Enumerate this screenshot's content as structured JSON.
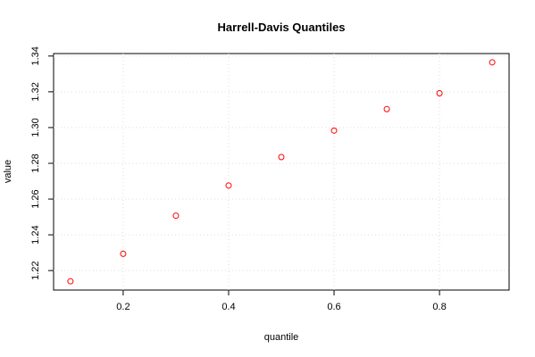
{
  "chart_data": {
    "type": "scatter",
    "title": "Harrell-Davis Quantiles",
    "x_label": "quantile",
    "y_label": "value",
    "x": [
      0.1,
      0.2,
      0.3,
      0.4,
      0.5,
      0.6,
      0.7,
      0.8,
      0.9
    ],
    "values": [
      1.214,
      1.2294,
      1.2507,
      1.2676,
      1.2835,
      1.2983,
      1.3103,
      1.3192,
      1.3365
    ],
    "color": "#ff0000",
    "xlim": [
      0.068,
      0.932
    ],
    "ylim": [
      1.2091,
      1.3414
    ],
    "xticks": [
      0.2,
      0.4,
      0.6,
      0.8
    ],
    "yticks": [
      {
        "value": 1.22,
        "label": "1.22"
      },
      {
        "value": 1.24,
        "label": "1.24"
      },
      {
        "value": 1.26,
        "label": "1.26"
      },
      {
        "value": 1.28,
        "label": "1.28"
      },
      {
        "value": 1.3,
        "label": "1.30"
      },
      {
        "value": 1.32,
        "label": "1.32"
      },
      {
        "value": 1.34,
        "label": "1.34"
      }
    ],
    "grid": true
  }
}
